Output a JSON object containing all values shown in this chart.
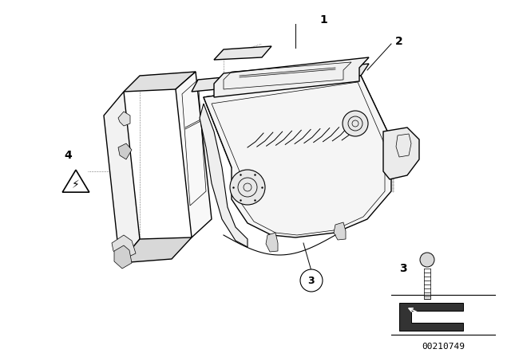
{
  "background_color": "#ffffff",
  "line_color": "#000000",
  "part_number": "00210749",
  "stipple_color": "#cccccc",
  "shadow_color": "#e8e8e8",
  "dark_color": "#999999"
}
